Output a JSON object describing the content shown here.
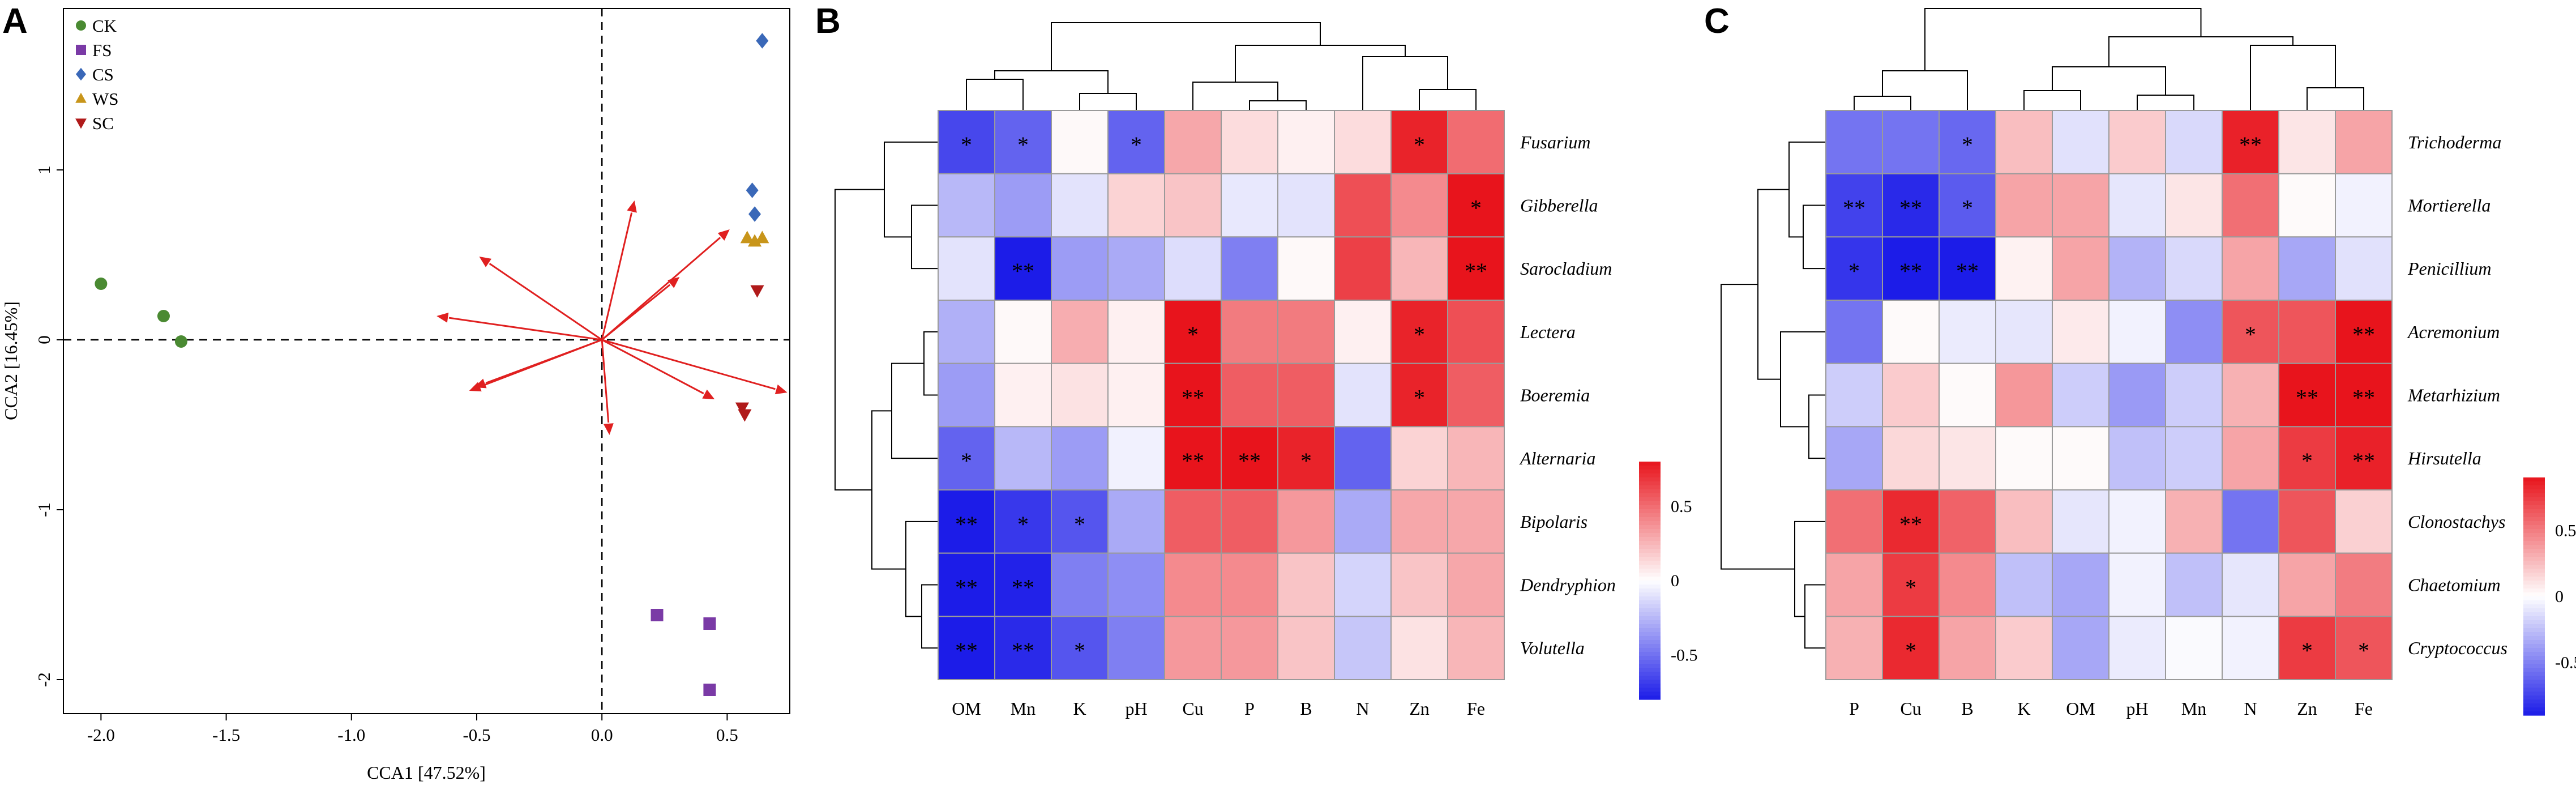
{
  "chart_data": [
    {
      "panel": "A",
      "type": "scatter",
      "xlabel": "CCA1 [47.52%]",
      "ylabel": "CCA2 [16.45%]",
      "xlim": [
        -2.15,
        0.75
      ],
      "ylim": [
        -2.2,
        1.95
      ],
      "xticks": [
        -2.0,
        -1.5,
        -1.0,
        -0.5,
        0.0,
        0.5
      ],
      "xtick_labels": [
        "-2.0",
        "-1.5",
        "-1.0",
        "-0.5",
        "0.0",
        "0.5"
      ],
      "yticks": [
        -2,
        -1,
        0,
        1
      ],
      "ytick_labels": [
        "-2",
        "-1",
        "0",
        "1"
      ],
      "legend_position": "top-left",
      "series": [
        {
          "name": "CK",
          "marker": "circle",
          "color": "#4a8a32",
          "points": [
            [
              -2.0,
              0.33
            ],
            [
              -1.75,
              0.14
            ],
            [
              -1.68,
              -0.01
            ]
          ]
        },
        {
          "name": "FS",
          "marker": "square",
          "color": "#7a3aa6",
          "points": [
            [
              0.22,
              -1.62
            ],
            [
              0.43,
              -1.67
            ],
            [
              0.43,
              -2.06
            ]
          ]
        },
        {
          "name": "CS",
          "marker": "diamond",
          "color": "#3a68b8",
          "points": [
            [
              0.64,
              1.76
            ],
            [
              0.6,
              0.88
            ],
            [
              0.61,
              0.74
            ]
          ]
        },
        {
          "name": "WS",
          "marker": "triangle-up",
          "color": "#c8951a",
          "points": [
            [
              0.58,
              0.6
            ],
            [
              0.61,
              0.58
            ],
            [
              0.64,
              0.6
            ]
          ]
        },
        {
          "name": "SC",
          "marker": "triangle-down",
          "color": "#b01a1a",
          "points": [
            [
              0.62,
              0.29
            ],
            [
              0.56,
              -0.4
            ],
            [
              0.57,
              -0.44
            ]
          ]
        }
      ],
      "arrows": [
        {
          "x": 0.13,
          "y": 0.82
        },
        {
          "x": -0.49,
          "y": 0.49
        },
        {
          "x": -0.66,
          "y": 0.14
        },
        {
          "x": -0.51,
          "y": -0.28
        },
        {
          "x": -0.53,
          "y": -0.3
        },
        {
          "x": 0.03,
          "y": -0.56
        },
        {
          "x": 0.45,
          "y": -0.35
        },
        {
          "x": 0.74,
          "y": -0.31
        },
        {
          "x": 0.31,
          "y": 0.37
        },
        {
          "x": 0.51,
          "y": 0.65
        }
      ],
      "arrow_color": "#e02020"
    },
    {
      "panel": "B",
      "type": "heatmap",
      "columns": [
        "OM",
        "Mn",
        "K",
        "pH",
        "Cu",
        "P",
        "B",
        "N",
        "Zn",
        "Fe"
      ],
      "rows": [
        "Fusarium",
        "Gibberella",
        "Sarocladium",
        "Lectera",
        "Boeremia",
        "Alternaria",
        "Bipolaris",
        "Dendryphion",
        "Volutella"
      ],
      "values": [
        [
          -0.65,
          -0.55,
          0.02,
          -0.55,
          0.3,
          0.12,
          0.05,
          0.12,
          0.75,
          0.5
        ],
        [
          -0.25,
          -0.35,
          -0.1,
          0.15,
          0.2,
          -0.08,
          -0.1,
          0.6,
          0.4,
          0.85
        ],
        [
          -0.1,
          -0.82,
          -0.35,
          -0.3,
          -0.12,
          -0.45,
          0.02,
          0.65,
          0.25,
          0.88
        ],
        [
          -0.28,
          0.02,
          0.28,
          0.05,
          0.85,
          0.45,
          0.45,
          0.05,
          0.75,
          0.6
        ],
        [
          -0.35,
          0.05,
          0.1,
          0.05,
          0.92,
          0.55,
          0.55,
          -0.1,
          0.75,
          0.55
        ],
        [
          -0.55,
          -0.25,
          -0.35,
          -0.05,
          0.9,
          0.85,
          0.75,
          -0.55,
          0.15,
          0.25
        ],
        [
          -0.85,
          -0.7,
          -0.6,
          -0.3,
          0.55,
          0.55,
          0.35,
          -0.3,
          0.3,
          0.3
        ],
        [
          -0.92,
          -0.78,
          -0.45,
          -0.4,
          0.4,
          0.4,
          0.2,
          -0.15,
          0.2,
          0.3
        ],
        [
          -0.85,
          -0.75,
          -0.6,
          -0.45,
          0.35,
          0.35,
          0.2,
          -0.2,
          0.1,
          0.25
        ]
      ],
      "significance": [
        [
          "*",
          "*",
          "",
          "*",
          "",
          "",
          "",
          "",
          "*",
          ""
        ],
        [
          "",
          "",
          "",
          "",
          "",
          "",
          "",
          "",
          "",
          "*"
        ],
        [
          "",
          "**",
          "",
          "",
          "",
          "",
          "",
          "",
          "",
          "**"
        ],
        [
          "",
          "",
          "",
          "",
          "*",
          "",
          "",
          "",
          "*",
          ""
        ],
        [
          "",
          "",
          "",
          "",
          "**",
          "",
          "",
          "",
          "*",
          ""
        ],
        [
          "*",
          "",
          "",
          "",
          "**",
          "**",
          "*",
          "",
          "",
          ""
        ],
        [
          "**",
          "*",
          "*",
          "",
          "",
          "",
          "",
          "",
          "",
          ""
        ],
        [
          "**",
          "**",
          "",
          "",
          "",
          "",
          "",
          "",
          "",
          ""
        ],
        [
          "**",
          "**",
          "*",
          "",
          "",
          "",
          "",
          "",
          "",
          ""
        ]
      ],
      "colorbar": {
        "min": -0.8,
        "max": 0.8,
        "ticks": [
          0.5,
          0,
          -0.5
        ],
        "tick_labels": [
          "0.5",
          "0",
          "-0.5"
        ]
      },
      "color_low": "#1c1ce8",
      "color_mid": "#ffffff",
      "color_high": "#e8141c"
    },
    {
      "panel": "C",
      "type": "heatmap",
      "columns": [
        "P",
        "Cu",
        "B",
        "K",
        "OM",
        "pH",
        "Mn",
        "N",
        "Zn",
        "Fe"
      ],
      "rows": [
        "Trichoderma",
        "Mortierella",
        "Penicillium",
        "Acremonium",
        "Metarhizium",
        "Hirsutella",
        "Clonostachys",
        "Chaetomium",
        "Cryptococcus"
      ],
      "values": [
        [
          -0.55,
          -0.55,
          -0.6,
          0.25,
          -0.12,
          0.2,
          -0.15,
          0.85,
          0.1,
          0.35
        ],
        [
          -0.75,
          -0.85,
          -0.65,
          0.35,
          0.35,
          -0.1,
          0.1,
          0.55,
          0.02,
          -0.05
        ],
        [
          -0.8,
          -0.95,
          -0.9,
          0.05,
          0.35,
          -0.3,
          -0.15,
          0.35,
          -0.35,
          -0.12
        ],
        [
          -0.55,
          0.02,
          -0.08,
          -0.1,
          0.08,
          -0.05,
          -0.45,
          0.65,
          0.65,
          0.95
        ],
        [
          -0.2,
          0.2,
          0.02,
          0.4,
          -0.2,
          -0.4,
          -0.2,
          0.3,
          0.92,
          0.9
        ],
        [
          -0.35,
          0.15,
          0.1,
          0.02,
          0.02,
          -0.25,
          -0.2,
          0.35,
          0.75,
          0.85
        ],
        [
          0.55,
          0.82,
          0.6,
          0.25,
          -0.1,
          -0.05,
          0.3,
          -0.55,
          0.65,
          0.18
        ],
        [
          0.35,
          0.75,
          0.45,
          -0.25,
          -0.35,
          -0.05,
          -0.25,
          -0.1,
          0.35,
          0.5
        ],
        [
          0.3,
          0.82,
          0.35,
          0.2,
          -0.35,
          -0.08,
          -0.02,
          -0.05,
          0.75,
          0.65
        ]
      ],
      "significance": [
        [
          "",
          "",
          "*",
          "",
          "",
          "",
          "",
          "**",
          "",
          ""
        ],
        [
          "**",
          "**",
          "*",
          "",
          "",
          "",
          "",
          "",
          "",
          ""
        ],
        [
          "*",
          "**",
          "**",
          "",
          "",
          "",
          "",
          "",
          "",
          ""
        ],
        [
          "",
          "",
          "",
          "",
          "",
          "",
          "",
          "*",
          "",
          "**"
        ],
        [
          "",
          "",
          "",
          "",
          "",
          "",
          "",
          "",
          "**",
          "**"
        ],
        [
          "",
          "",
          "",
          "",
          "",
          "",
          "",
          "",
          "*",
          "**"
        ],
        [
          "",
          "**",
          "",
          "",
          "",
          "",
          "",
          "",
          "",
          ""
        ],
        [
          "",
          "*",
          "",
          "",
          "",
          "",
          "",
          "",
          "",
          ""
        ],
        [
          "",
          "*",
          "",
          "",
          "",
          "",
          "",
          "",
          "*",
          "*"
        ]
      ],
      "colorbar": {
        "min": -0.9,
        "max": 0.9,
        "ticks": [
          0.5,
          0,
          -0.5
        ],
        "tick_labels": [
          "0.5",
          "0",
          "-0.5"
        ]
      },
      "color_low": "#1c1ce8",
      "color_mid": "#ffffff",
      "color_high": "#e8141c"
    }
  ],
  "panel_labels": [
    "A",
    "B",
    "C"
  ],
  "legend_labels": [
    "CK",
    "FS",
    "CS",
    "WS",
    "SC"
  ]
}
